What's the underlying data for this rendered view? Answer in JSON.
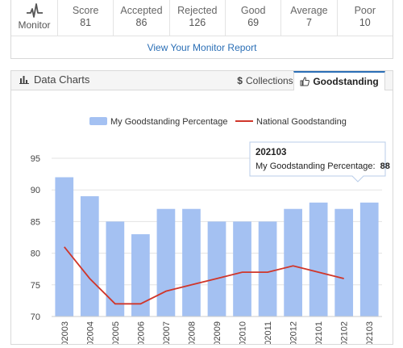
{
  "stats": {
    "monitor_label": "Monitor",
    "items": [
      {
        "label": "Score",
        "value": "81"
      },
      {
        "label": "Accepted",
        "value": "86"
      },
      {
        "label": "Rejected",
        "value": "126"
      },
      {
        "label": "Good",
        "value": "69"
      },
      {
        "label": "Average",
        "value": "7"
      },
      {
        "label": "Poor",
        "value": "10"
      }
    ],
    "report_link": "View Your Monitor Report"
  },
  "panel": {
    "title": "Data Charts",
    "tabs": [
      {
        "label": "Collections",
        "icon": "dollar-icon"
      },
      {
        "label": "Goodstanding",
        "icon": "thumbs-up-icon"
      }
    ]
  },
  "colors": {
    "bar": "#a4c1f2",
    "line": "#d0362a",
    "link": "#2b6fb6"
  },
  "chart_data": {
    "type": "bar",
    "categories": [
      "202003",
      "202004",
      "202005",
      "202006",
      "202007",
      "202008",
      "202009",
      "202010",
      "202011",
      "202012",
      "202101",
      "202102",
      "202103"
    ],
    "series": [
      {
        "name": "My Goodstanding Percentage",
        "type": "bar",
        "values": [
          92,
          89,
          85,
          83,
          87,
          87,
          85,
          85,
          85,
          87,
          88,
          87,
          88
        ]
      },
      {
        "name": "National Goodstanding",
        "type": "line",
        "values": [
          81,
          76,
          72,
          72,
          74,
          75,
          76,
          77,
          77,
          78,
          77,
          76,
          null
        ]
      }
    ],
    "ylim": [
      70,
      95
    ],
    "yticks": [
      70,
      75,
      80,
      85,
      90,
      95
    ],
    "legend": "top-center",
    "grid": true,
    "tooltip": {
      "title": "202103",
      "label": "My Goodstanding Percentage:",
      "value": "88"
    }
  }
}
